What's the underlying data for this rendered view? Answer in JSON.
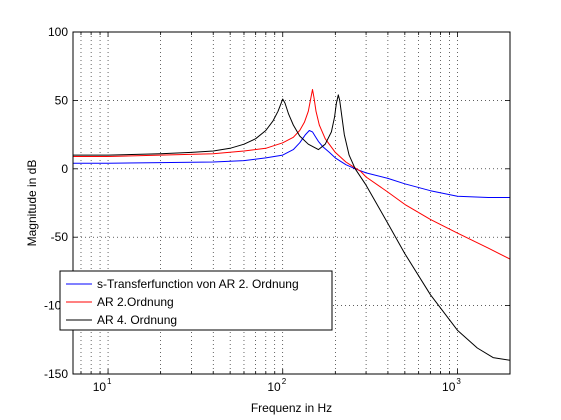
{
  "chart_data": {
    "type": "line",
    "title": "",
    "xlabel": "Frequenz in Hz",
    "ylabel": "Magnitude in dB",
    "x_scale": "log",
    "xlim": [
      6.3,
      2000
    ],
    "ylim": [
      -150,
      100
    ],
    "yticks": [
      100,
      50,
      0,
      -50,
      -100,
      -150
    ],
    "ytick_labels": [
      "100",
      "50",
      "0",
      "-50",
      "-100",
      "-150"
    ],
    "xticks": [
      {
        "value": 10,
        "base": "10",
        "exp": "1"
      },
      {
        "value": 100,
        "base": "10",
        "exp": "2"
      },
      {
        "value": 1000,
        "base": "10",
        "exp": "3"
      }
    ],
    "grid": "dotted, major and minor on log x",
    "legend_location": "lower-left",
    "series": [
      {
        "name": "s-Transferfunction von AR 2. Ordnung",
        "color": "#0000ff",
        "x": [
          6.3,
          10,
          20,
          40,
          60,
          80,
          100,
          115,
          125,
          135,
          142,
          148,
          153,
          160,
          170,
          185,
          200,
          230,
          260,
          300,
          400,
          500,
          700,
          1000,
          1500,
          2000
        ],
        "y": [
          4,
          4,
          4.5,
          5,
          6,
          8,
          10,
          14,
          19,
          25,
          28,
          27,
          24,
          20,
          16,
          12,
          8,
          3,
          0,
          -3,
          -7,
          -11,
          -16,
          -20,
          -21,
          -21
        ]
      },
      {
        "name": "AR 2.Ordnung",
        "color": "#ff0000",
        "x": [
          6.3,
          10,
          20,
          40,
          60,
          80,
          100,
          115,
          125,
          133,
          140,
          144,
          148,
          151,
          155,
          162,
          175,
          200,
          230,
          250,
          280,
          300,
          400,
          500,
          700,
          1000,
          1500,
          2000
        ],
        "y": [
          9,
          9,
          10,
          11,
          13,
          15,
          19,
          23,
          28,
          34,
          42,
          50,
          58,
          52,
          42,
          32,
          22,
          12,
          5,
          2,
          -2,
          -6,
          -17,
          -26,
          -37,
          -47,
          -58,
          -66
        ]
      },
      {
        "name": "AR 4. Ordnung",
        "color": "#000000",
        "x": [
          6.3,
          10,
          20,
          30,
          40,
          50,
          60,
          70,
          80,
          88,
          94,
          98,
          100,
          103,
          108,
          115,
          125,
          140,
          160,
          175,
          190,
          198,
          203,
          208,
          212,
          218,
          225,
          240,
          260,
          300,
          400,
          500,
          700,
          1000,
          1300,
          1600,
          2000
        ],
        "y": [
          10,
          10,
          11,
          12,
          13,
          15,
          18,
          22,
          28,
          35,
          42,
          48,
          51,
          48,
          40,
          32,
          24,
          18,
          14,
          18,
          27,
          38,
          48,
          54,
          50,
          38,
          25,
          10,
          0,
          -12,
          -40,
          -62,
          -92,
          -118,
          -131,
          -138,
          -140
        ]
      }
    ]
  }
}
